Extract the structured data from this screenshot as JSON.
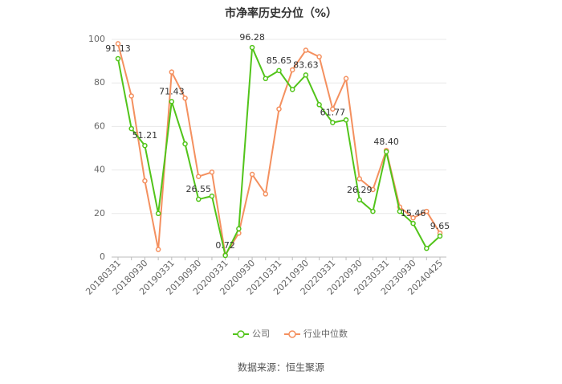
{
  "chart_data": {
    "type": "line",
    "title": "市净率历史分位（%）",
    "categories": [
      "20180331",
      null,
      "20180930",
      null,
      "20190331",
      null,
      "20190930",
      null,
      "20200331",
      null,
      "20200930",
      null,
      "20210331",
      null,
      "20210930",
      null,
      "20220331",
      null,
      "20220930",
      null,
      "20230331",
      null,
      "20230930",
      null,
      "20240425"
    ],
    "series": [
      {
        "name": "公司",
        "color": "#52c41a",
        "values": [
          91.13,
          59,
          51.21,
          20,
          71.43,
          52,
          26.55,
          28,
          0.72,
          13,
          96.28,
          82,
          85.65,
          77,
          83.63,
          70,
          61.77,
          63,
          26.29,
          21,
          48.4,
          21,
          15.46,
          4,
          9.65
        ],
        "value_labels": [
          "91.13",
          null,
          "51.21",
          null,
          "71.43",
          null,
          "26.55",
          null,
          "0.72",
          null,
          "96.28",
          null,
          "85.65",
          null,
          "83.63",
          null,
          "61.77",
          null,
          "26.29",
          null,
          "48.40",
          null,
          "15.46",
          null,
          "9.65"
        ]
      },
      {
        "name": "行业中位数",
        "color": "#f4905f",
        "values": [
          98,
          74,
          35,
          3.5,
          85,
          73,
          37,
          39,
          1,
          11,
          38,
          29,
          68,
          86,
          95,
          92,
          68,
          82,
          36,
          31,
          49,
          23,
          18,
          21,
          11
        ]
      }
    ],
    "ylim": [
      0,
      100
    ],
    "yticks": [
      0,
      20,
      40,
      60,
      80,
      100
    ],
    "grid": true,
    "legend": "bottom",
    "source": "数据来源：恒生聚源"
  }
}
